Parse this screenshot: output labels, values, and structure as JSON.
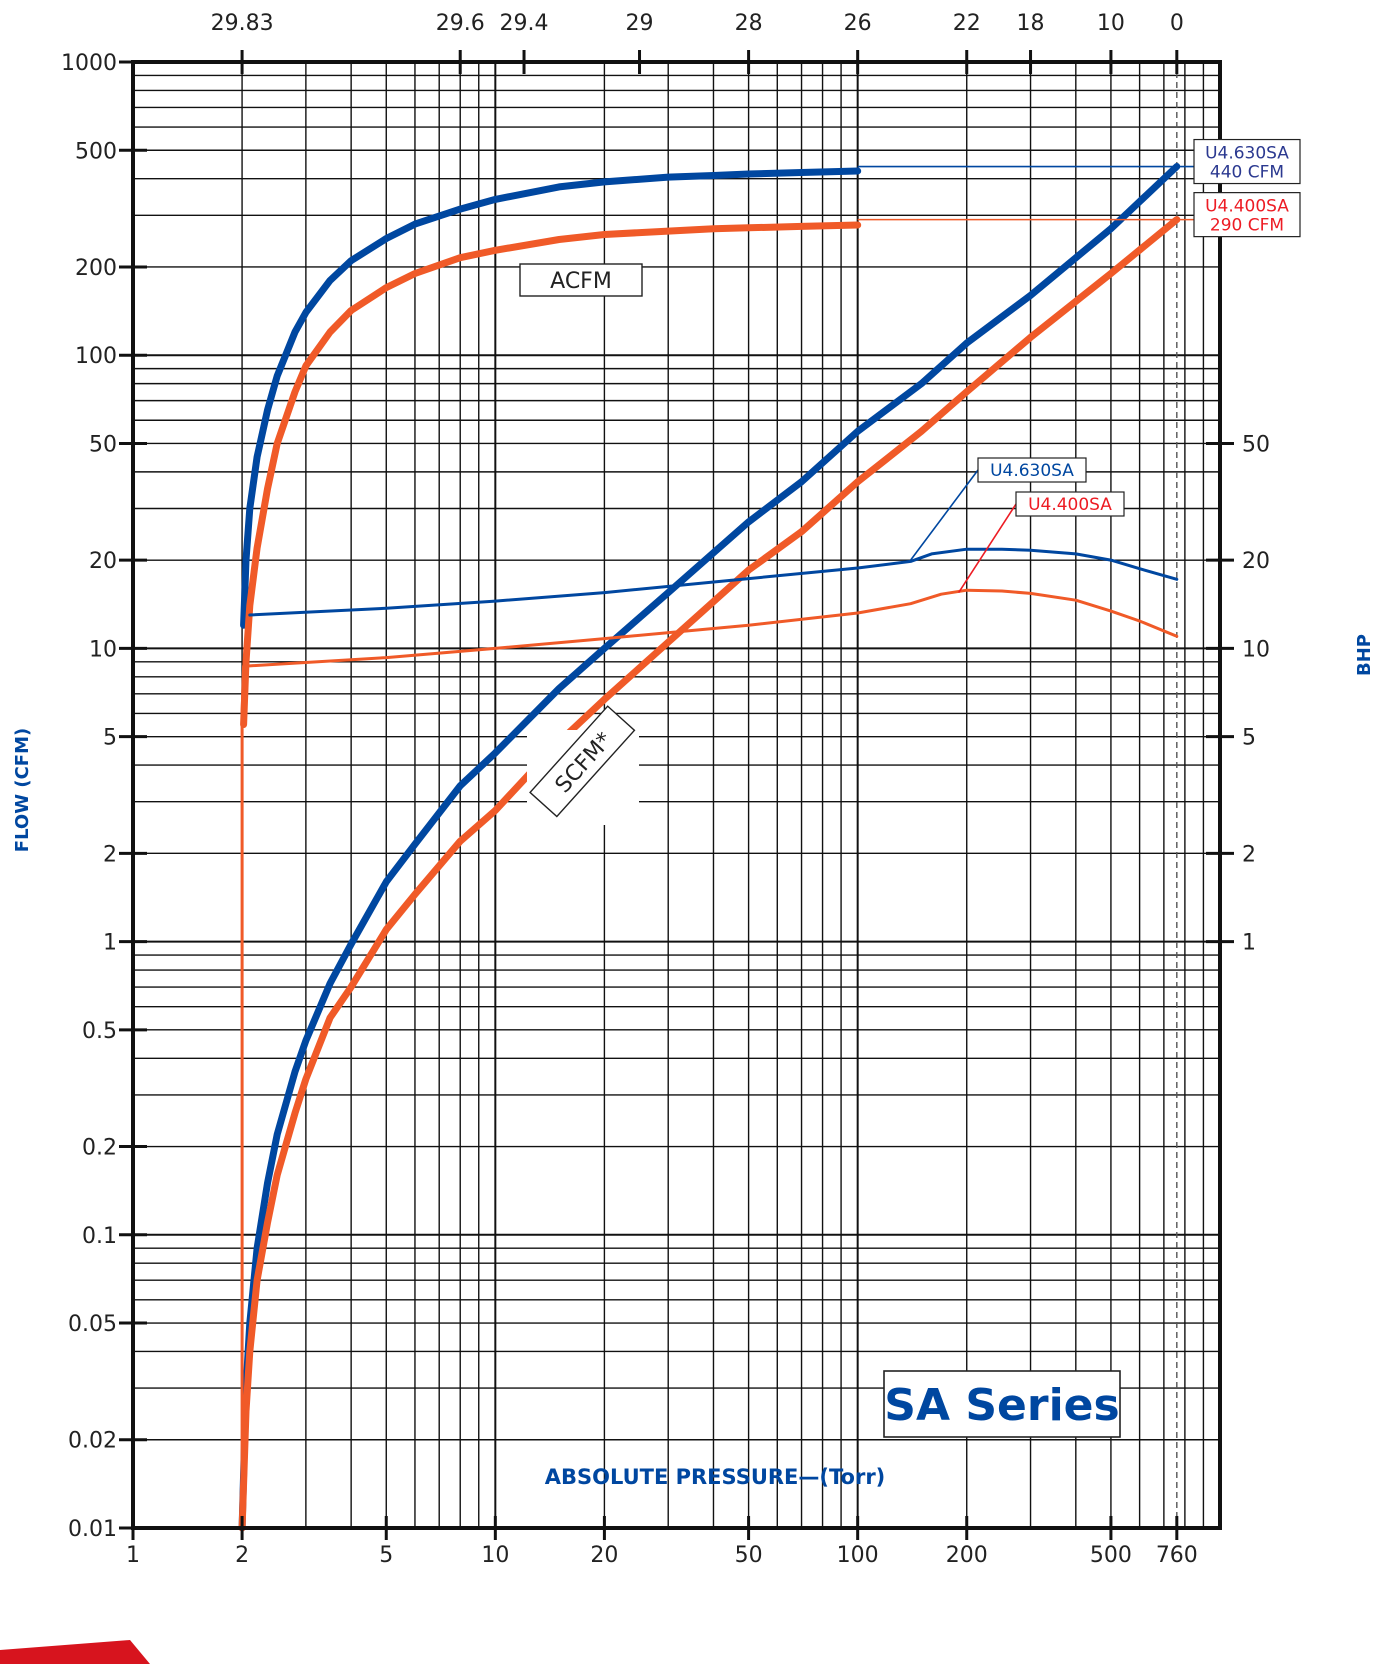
{
  "chart_data": {
    "type": "line",
    "title": "SA Series",
    "xlabel": "ABSOLUTE PRESSURE—(Torr)",
    "ylabel": "FLOW  (CFM)",
    "y2label": "BHP",
    "x_scale": "log",
    "y_scale": "log",
    "xlim": [
      1,
      1000
    ],
    "ylim": [
      0.01,
      1000
    ],
    "x_ticks": [
      1,
      2,
      5,
      10,
      20,
      50,
      100,
      200,
      500,
      760
    ],
    "x_tick_labels": [
      "1",
      "2",
      "5",
      "10",
      "20",
      "50",
      "100",
      "200",
      "500",
      "760"
    ],
    "y_ticks": [
      0.01,
      0.02,
      0.05,
      0.1,
      0.2,
      0.5,
      1,
      2,
      5,
      10,
      20,
      50,
      100,
      200,
      500,
      1000
    ],
    "y_tick_labels": [
      "0.01",
      "0.02",
      "0.05",
      "0.1",
      "0.2",
      "0.5",
      "1",
      "2",
      "5",
      "10",
      "20",
      "50",
      "100",
      "200",
      "500",
      "1000"
    ],
    "y2_ticks": [
      1,
      2,
      5,
      10,
      20,
      50
    ],
    "y2_tick_labels": [
      "1",
      "2",
      "5",
      "10",
      "20",
      "50"
    ],
    "top_axis_label": "",
    "top_ticks_pressure": [
      2,
      8,
      12,
      25,
      50,
      100,
      200,
      300,
      500,
      760
    ],
    "top_tick_labels": [
      "29.83",
      "29.6",
      "29.4",
      "29",
      "28",
      "26",
      "22",
      "18",
      "10",
      "0"
    ],
    "grid": true,
    "colors": {
      "blue": "#0047a0",
      "red": "#f05a28",
      "blue_label": "#2b3990",
      "red_label": "#ed1c24"
    },
    "annotations": [
      {
        "text": "ACFM",
        "x": 20,
        "y": 210
      },
      {
        "text": "SCFM*",
        "x": 25,
        "y": 3.5
      }
    ],
    "end_labels": [
      {
        "line1": "U4.630SA",
        "line2": "440 CFM",
        "y": 440,
        "color": "#2b3990"
      },
      {
        "line1": "U4.400SA",
        "line2": "290 CFM",
        "y": 290,
        "color": "#ed1c24"
      }
    ],
    "bhp_labels": [
      {
        "text": "U4.630SA",
        "color": "#0047a0",
        "anchor": [
          140,
          20
        ],
        "box": [
          500,
          30
        ]
      },
      {
        "text": "U4.400SA",
        "color": "#ed1c24",
        "anchor": [
          190,
          15.5
        ],
        "box": [
          610,
          24
        ]
      }
    ],
    "series": [
      {
        "name": "U4.630SA",
        "group": "ACFM",
        "color": "#0047a0",
        "width": 7,
        "x": [
          2.02,
          2.05,
          2.1,
          2.2,
          2.35,
          2.5,
          2.8,
          3,
          3.5,
          4,
          5,
          6,
          8,
          10,
          15,
          20,
          30,
          40,
          50,
          70,
          100
        ],
        "y": [
          12,
          20,
          30,
          45,
          65,
          85,
          120,
          140,
          180,
          210,
          250,
          280,
          315,
          340,
          375,
          390,
          405,
          410,
          415,
          420,
          425
        ]
      },
      {
        "name": "U4.400SA",
        "group": "ACFM",
        "color": "#f05a28",
        "width": 7,
        "x": [
          2.02,
          2.05,
          2.1,
          2.2,
          2.35,
          2.5,
          2.8,
          3,
          3.5,
          4,
          5,
          6,
          8,
          10,
          15,
          20,
          30,
          40,
          50,
          70,
          100
        ],
        "y": [
          5.5,
          9,
          14,
          22,
          35,
          50,
          75,
          92,
          120,
          142,
          170,
          190,
          215,
          228,
          248,
          258,
          265,
          270,
          272,
          275,
          278
        ]
      },
      {
        "name": "U4.630SA",
        "group": "SCFM",
        "color": "#0047a0",
        "width": 7,
        "x": [
          2,
          2.05,
          2.1,
          2.2,
          2.35,
          2.5,
          2.8,
          3,
          3.5,
          4,
          5,
          6,
          8,
          10,
          15,
          20,
          30,
          50,
          70,
          100,
          150,
          200,
          300,
          500,
          760
        ],
        "y": [
          0.01,
          0.03,
          0.05,
          0.09,
          0.15,
          0.22,
          0.36,
          0.46,
          0.72,
          0.98,
          1.6,
          2.15,
          3.4,
          4.4,
          7.3,
          10,
          15.5,
          27,
          37,
          55,
          80,
          110,
          160,
          270,
          440
        ]
      },
      {
        "name": "U4.400SA",
        "group": "SCFM",
        "color": "#f05a28",
        "width": 7,
        "x": [
          2,
          2.05,
          2.1,
          2.2,
          2.35,
          2.5,
          2.8,
          3,
          3.5,
          4,
          5,
          6,
          8,
          10,
          15,
          20,
          30,
          50,
          70,
          100,
          150,
          200,
          300,
          500,
          760
        ],
        "y": [
          0.01,
          0.025,
          0.04,
          0.07,
          0.11,
          0.16,
          0.26,
          0.34,
          0.55,
          0.7,
          1.1,
          1.45,
          2.2,
          2.8,
          4.8,
          6.7,
          10.5,
          18.5,
          25,
          37,
          55,
          75,
          115,
          190,
          290
        ]
      },
      {
        "name": "U4.630SA",
        "group": "BHP",
        "color": "#0047a0",
        "width": 3,
        "x": [
          2.1,
          5,
          10,
          20,
          50,
          100,
          140,
          160,
          200,
          250,
          300,
          400,
          500,
          600,
          760
        ],
        "y": [
          13,
          13.7,
          14.5,
          15.5,
          17.3,
          18.8,
          19.8,
          21,
          21.8,
          21.8,
          21.6,
          21,
          20,
          18.7,
          17.2
        ]
      },
      {
        "name": "U4.400SA",
        "group": "BHP",
        "color": "#f05a28",
        "width": 3,
        "x": [
          2.05,
          5,
          10,
          20,
          50,
          100,
          140,
          170,
          200,
          250,
          300,
          400,
          500,
          600,
          760
        ],
        "y": [
          8.7,
          9.3,
          10,
          10.8,
          12,
          13.2,
          14.2,
          15.3,
          15.8,
          15.7,
          15.4,
          14.6,
          13.4,
          12.4,
          11
        ]
      },
      {
        "name": "",
        "group": "base",
        "color": "#f05a28",
        "width": 3,
        "x": [
          2,
          2,
          2.02
        ],
        "y": [
          0.01,
          6,
          8.7
        ]
      }
    ]
  }
}
